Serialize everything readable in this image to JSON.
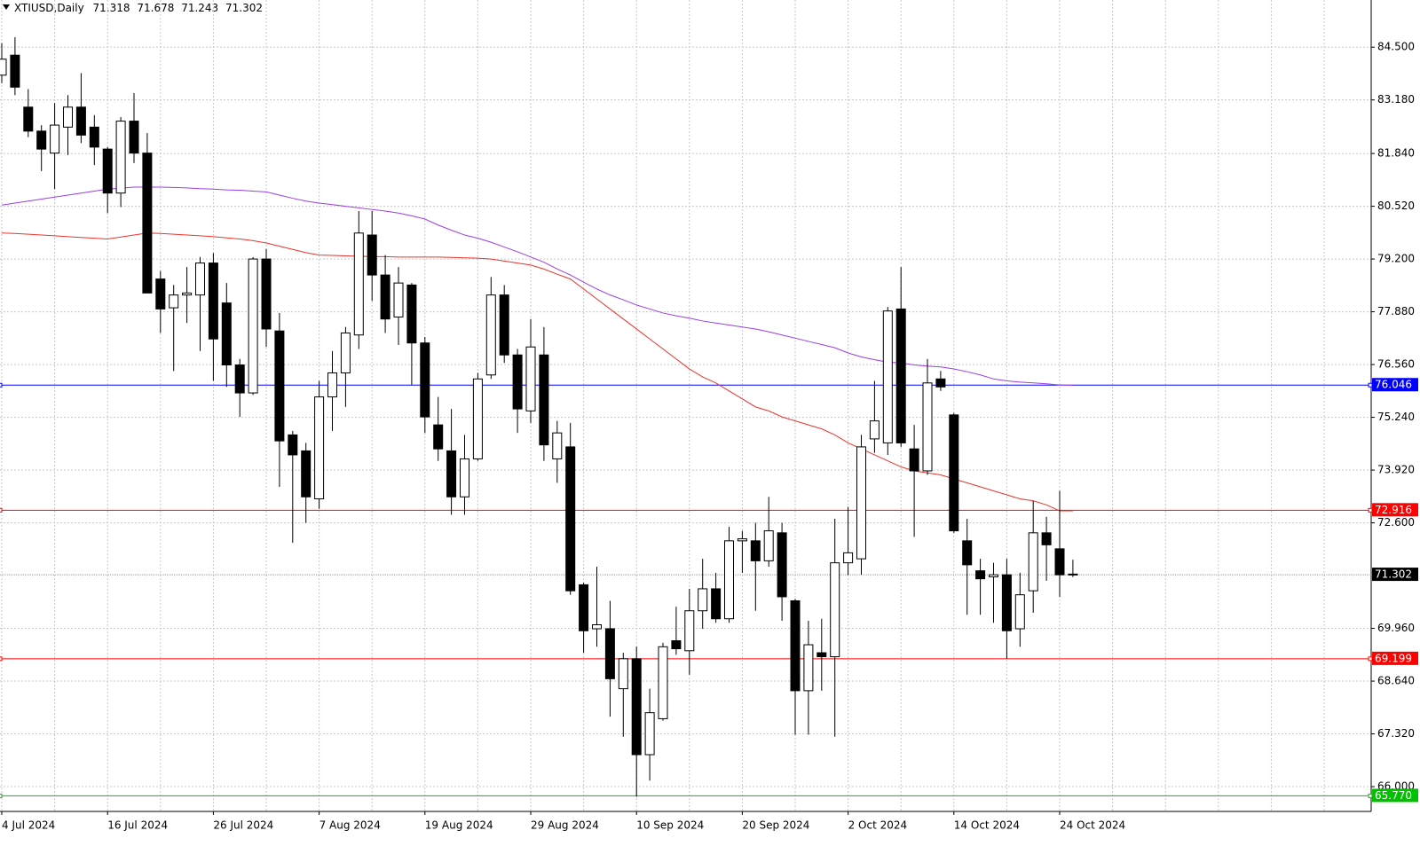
{
  "chart_data": {
    "type": "candlestick",
    "title": "XTIUSD,Daily",
    "categories": [
      "4 Jul 2024",
      null,
      null,
      null,
      null,
      null,
      null,
      null,
      "16 Jul 2024",
      null,
      null,
      null,
      null,
      null,
      null,
      null,
      "26 Jul 2024",
      null,
      null,
      null,
      null,
      null,
      null,
      null,
      "7 Aug 2024",
      null,
      null,
      null,
      null,
      null,
      null,
      null,
      "19 Aug 2024",
      null,
      null,
      null,
      null,
      null,
      null,
      null,
      "29 Aug 2024",
      null,
      null,
      null,
      null,
      null,
      null,
      null,
      "10 Sep 2024",
      null,
      null,
      null,
      null,
      null,
      null,
      null,
      "20 Sep 2024",
      null,
      null,
      null,
      null,
      null,
      null,
      null,
      "2 Oct 2024",
      null,
      null,
      null,
      null,
      null,
      null,
      null,
      "14 Oct 2024",
      null,
      null,
      null,
      null,
      null,
      null,
      null,
      "24 Oct 2024",
      null
    ],
    "open": [
      83.8,
      84.3,
      83.0,
      82.4,
      81.85,
      82.5,
      83.0,
      82.5,
      81.95,
      80.85,
      82.65,
      81.85,
      78.7,
      77.98,
      78.3,
      78.3,
      79.1,
      78.1,
      76.55,
      75.85,
      79.2,
      77.4,
      74.8,
      74.4,
      73.2,
      75.75,
      76.35,
      77.3,
      79.8,
      78.8,
      77.75,
      78.55,
      77.1,
      75.05,
      74.4,
      73.25,
      74.2,
      76.3,
      78.3,
      76.8,
      75.4,
      76.8,
      74.2,
      74.5,
      71.05,
      69.95,
      69.95,
      68.45,
      69.2,
      66.8,
      67.7,
      69.65,
      69.4,
      70.4,
      70.95,
      70.2,
      72.15,
      72.15,
      71.65,
      72.35,
      70.65,
      68.4,
      69.35,
      69.25,
      71.6,
      71.7,
      74.7,
      74.6,
      77.95,
      74.45,
      73.9,
      76.2,
      75.3,
      72.15,
      71.4,
      71.25,
      71.3,
      69.95,
      70.9,
      72.35,
      71.95,
      71.318
    ],
    "high": [
      84.6,
      84.75,
      83.45,
      82.55,
      83.1,
      83.3,
      83.85,
      82.8,
      82.0,
      82.75,
      83.35,
      82.35,
      78.9,
      78.55,
      79.0,
      79.25,
      79.35,
      78.6,
      76.7,
      79.25,
      79.45,
      77.85,
      74.9,
      74.6,
      76.15,
      76.9,
      77.5,
      80.4,
      80.4,
      79.3,
      79.0,
      78.6,
      77.25,
      75.75,
      75.45,
      74.8,
      76.35,
      78.75,
      78.55,
      76.95,
      77.7,
      77.5,
      75.15,
      75.1,
      71.1,
      71.5,
      70.65,
      69.35,
      69.5,
      68.45,
      69.6,
      70.5,
      70.95,
      71.7,
      71.35,
      72.5,
      72.4,
      72.6,
      73.25,
      72.6,
      70.7,
      70.15,
      70.2,
      72.7,
      73.0,
      74.8,
      76.15,
      78.0,
      79.0,
      75.05,
      76.7,
      76.4,
      75.35,
      72.7,
      71.7,
      71.6,
      71.7,
      71.35,
      73.15,
      72.75,
      73.4,
      71.678
    ],
    "low": [
      83.6,
      83.3,
      82.25,
      81.4,
      80.95,
      81.8,
      82.1,
      81.55,
      80.35,
      80.5,
      81.6,
      78.35,
      77.35,
      76.4,
      77.6,
      76.9,
      76.15,
      76.0,
      75.25,
      75.8,
      77.0,
      73.5,
      72.1,
      72.6,
      72.95,
      74.9,
      75.5,
      76.95,
      78.15,
      77.35,
      77.05,
      76.05,
      74.85,
      74.15,
      72.8,
      72.8,
      74.15,
      76.2,
      76.6,
      74.85,
      75.1,
      74.15,
      73.6,
      70.8,
      69.35,
      69.5,
      67.75,
      67.25,
      65.75,
      66.15,
      67.65,
      69.3,
      68.8,
      69.95,
      70.1,
      70.1,
      71.35,
      70.4,
      71.5,
      70.15,
      67.3,
      67.3,
      68.4,
      67.25,
      71.3,
      71.3,
      74.35,
      74.3,
      74.5,
      72.25,
      73.8,
      75.9,
      72.35,
      70.3,
      70.3,
      70.1,
      69.2,
      69.5,
      70.35,
      71.15,
      70.75,
      71.243
    ],
    "close": [
      84.2,
      83.5,
      82.4,
      81.95,
      82.55,
      83.0,
      82.3,
      82.0,
      80.85,
      82.65,
      81.85,
      78.35,
      77.95,
      78.3,
      78.35,
      79.1,
      77.2,
      76.55,
      75.85,
      79.2,
      77.45,
      74.65,
      74.3,
      73.25,
      75.75,
      76.35,
      77.35,
      79.85,
      78.8,
      77.7,
      78.6,
      77.1,
      75.25,
      74.45,
      73.25,
      74.2,
      76.2,
      78.3,
      76.8,
      75.45,
      77.0,
      74.55,
      74.85,
      70.9,
      69.9,
      70.05,
      68.7,
      69.2,
      66.8,
      67.85,
      69.5,
      69.45,
      70.4,
      70.95,
      70.2,
      72.15,
      72.2,
      71.65,
      72.4,
      70.75,
      68.4,
      69.55,
      69.25,
      71.6,
      71.85,
      74.5,
      75.15,
      77.9,
      74.6,
      73.9,
      76.1,
      76.0,
      72.4,
      71.55,
      71.2,
      71.3,
      69.9,
      70.8,
      72.35,
      72.05,
      71.3,
      71.302
    ],
    "up_color": "#ffffff",
    "down_color": "#000000",
    "overlays": [
      {
        "color": "#e8352c",
        "values": [
          79.85,
          79.84,
          79.82,
          79.8,
          79.78,
          79.76,
          79.74,
          79.72,
          79.7,
          79.75,
          79.8,
          79.85,
          79.84,
          79.82,
          79.8,
          79.78,
          79.76,
          79.73,
          79.7,
          79.66,
          79.6,
          79.52,
          79.44,
          79.36,
          79.3,
          79.29,
          79.28,
          79.27,
          79.26,
          79.26,
          79.25,
          79.25,
          79.25,
          79.25,
          79.24,
          79.23,
          79.22,
          79.2,
          79.15,
          79.1,
          79.05,
          78.95,
          78.82,
          78.7,
          78.45,
          78.2,
          77.95,
          77.7,
          77.45,
          77.2,
          76.95,
          76.7,
          76.45,
          76.25,
          76.1,
          75.9,
          75.7,
          75.5,
          75.4,
          75.25,
          75.15,
          75.05,
          74.95,
          74.8,
          74.6,
          74.45,
          74.3,
          74.15,
          74.0,
          73.9,
          73.85,
          73.8,
          73.7,
          73.6,
          73.5,
          73.4,
          73.3,
          73.2,
          73.15,
          73.05,
          72.9,
          72.9
        ]
      },
      {
        "color": "#9a3ee8",
        "values": [
          80.55,
          80.6,
          80.65,
          80.7,
          80.75,
          80.8,
          80.85,
          80.9,
          80.95,
          80.97,
          81.0,
          81.0,
          81.0,
          80.99,
          80.98,
          80.96,
          80.95,
          80.93,
          80.92,
          80.9,
          80.88,
          80.8,
          80.72,
          80.65,
          80.6,
          80.56,
          80.52,
          80.48,
          80.44,
          80.4,
          80.35,
          80.28,
          80.2,
          80.05,
          79.92,
          79.8,
          79.72,
          79.62,
          79.5,
          79.38,
          79.25,
          79.12,
          78.95,
          78.8,
          78.62,
          78.45,
          78.3,
          78.18,
          78.05,
          77.95,
          77.85,
          77.78,
          77.72,
          77.65,
          77.6,
          77.55,
          77.5,
          77.45,
          77.38,
          77.3,
          77.22,
          77.14,
          77.06,
          76.98,
          76.85,
          76.75,
          76.68,
          76.62,
          76.6,
          76.55,
          76.52,
          76.5,
          76.45,
          76.38,
          76.3,
          76.2,
          76.15,
          76.12,
          76.1,
          76.08,
          76.05,
          76.04
        ]
      }
    ],
    "levels": [
      {
        "price": 76.046,
        "color": "#0000ff"
      },
      {
        "price": 72.916,
        "color": "#ff0000"
      },
      {
        "price": 69.199,
        "color": "#ff0000"
      },
      {
        "price": {
          "value": 65.77,
          "label": "65.770"
        },
        "color": "#00c000"
      }
    ],
    "ylim": [
      65.38,
      85.68
    ],
    "yticks": [
      {
        "value": 84.5,
        "label": "84.500"
      },
      {
        "value": 83.18,
        "label": "83.180"
      },
      {
        "value": 81.84,
        "label": "81.840"
      },
      {
        "value": 80.52,
        "label": "80.520"
      },
      {
        "value": 79.2,
        "label": "79.200"
      },
      {
        "value": 77.88,
        "label": "77.880"
      },
      {
        "value": 76.56,
        "label": "76.560"
      },
      {
        "value": 75.24,
        "label": "75.240"
      },
      {
        "value": 73.92,
        "label": "73.920"
      },
      {
        "value": 72.6,
        "label": "72.600"
      },
      {
        "value": 69.96,
        "label": "69.960"
      },
      {
        "value": 68.64,
        "label": "68.640"
      },
      {
        "value": 67.32,
        "label": "67.320"
      },
      {
        "value": 66.0,
        "label": "66.000"
      }
    ],
    "grid": true
  }
}
